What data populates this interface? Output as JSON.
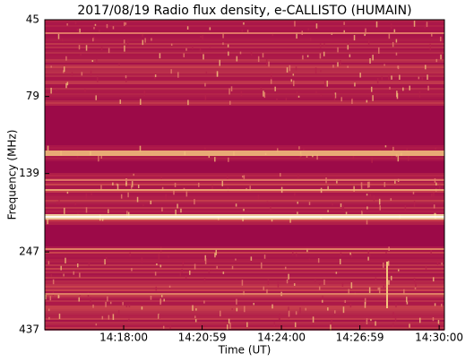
{
  "chart_data": {
    "type": "spectrogram",
    "title": "2017/08/19  Radio flux density, e-CALLISTO (HUMAIN)",
    "xlabel": "Time (UT)",
    "ylabel": "Frequency (MHz)",
    "xlim": [
      51300,
      52212
    ],
    "xticks": [
      {
        "value": 51480,
        "label": "14:18:00"
      },
      {
        "value": 51659,
        "label": "14:20:59"
      },
      {
        "value": 51840,
        "label": "14:24:00"
      },
      {
        "value": 52019,
        "label": "14:26:59"
      },
      {
        "value": 52200,
        "label": "14:30:00"
      }
    ],
    "ylim": [
      437,
      45
    ],
    "yscale": "log",
    "yticks": [
      45,
      79,
      139,
      247,
      437
    ]
  }
}
